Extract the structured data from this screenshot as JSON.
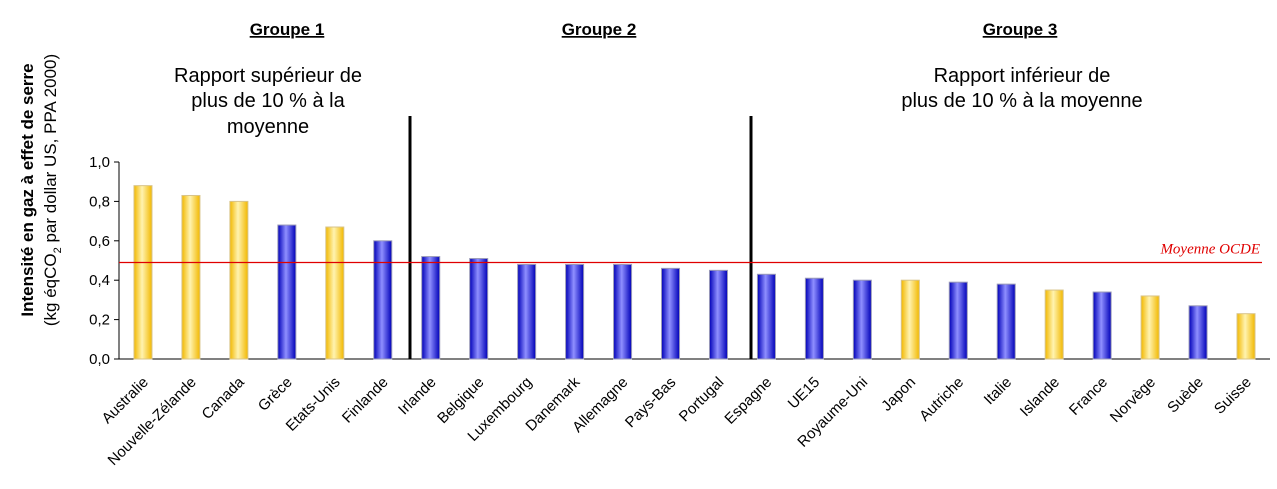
{
  "chart_data": {
    "type": "bar",
    "ylabel": "Intensité en gaz à effet de serre",
    "ylabel_units_prefix": "(kg  éqCO",
    "ylabel_units_sub": "2",
    "ylabel_units_suffix": " par dollar US, PPA 2000)",
    "ylim": [
      0,
      1.0
    ],
    "yticks": [
      "0,0",
      "0,2",
      "0,4",
      "0,6",
      "0,8",
      "1,0"
    ],
    "categories": [
      "Australie",
      "Nouvelle-Zélande",
      "Canada",
      "Grèce",
      "Etats-Unis",
      "Finlande",
      "Irlande",
      "Belgique",
      "Luxembourg",
      "Danemark",
      "Allemagne",
      "Pays-Bas",
      "Portugal",
      "Espagne",
      "UE15",
      "Royaume-Uni",
      "Japon",
      "Autriche",
      "Italie",
      "Islande",
      "France",
      "Norvège",
      "Suède",
      "Suisse"
    ],
    "values": [
      0.88,
      0.83,
      0.8,
      0.68,
      0.67,
      0.6,
      0.52,
      0.51,
      0.48,
      0.48,
      0.48,
      0.46,
      0.45,
      0.43,
      0.41,
      0.4,
      0.4,
      0.39,
      0.38,
      0.35,
      0.34,
      0.32,
      0.27,
      0.23
    ],
    "bar_colors": [
      "yellow",
      "yellow",
      "yellow",
      "blue",
      "yellow",
      "blue",
      "blue",
      "blue",
      "blue",
      "blue",
      "blue",
      "blue",
      "blue",
      "blue",
      "blue",
      "blue",
      "yellow",
      "blue",
      "blue",
      "yellow",
      "blue",
      "yellow",
      "blue",
      "yellow"
    ],
    "average": {
      "label": "Moyenne OCDE",
      "value": 0.49,
      "color": "#e00000"
    },
    "groups": [
      {
        "title": "Groupe 1",
        "desc": [
          "Rapport supérieur de",
          "plus de 10 % à la",
          "moyenne"
        ]
      },
      {
        "title": "Groupe 2",
        "desc": []
      },
      {
        "title": "Groupe 3",
        "desc": [
          "Rapport inférieur de",
          "plus de 10 % à la moyenne"
        ]
      }
    ],
    "grid": false
  },
  "colors": {
    "yellow_light": "#fff3b0",
    "yellow_dark": "#f2b800",
    "blue_light": "#8f8fff",
    "blue_dark": "#0000b8",
    "separator": "#000000",
    "axis": "#000000"
  }
}
